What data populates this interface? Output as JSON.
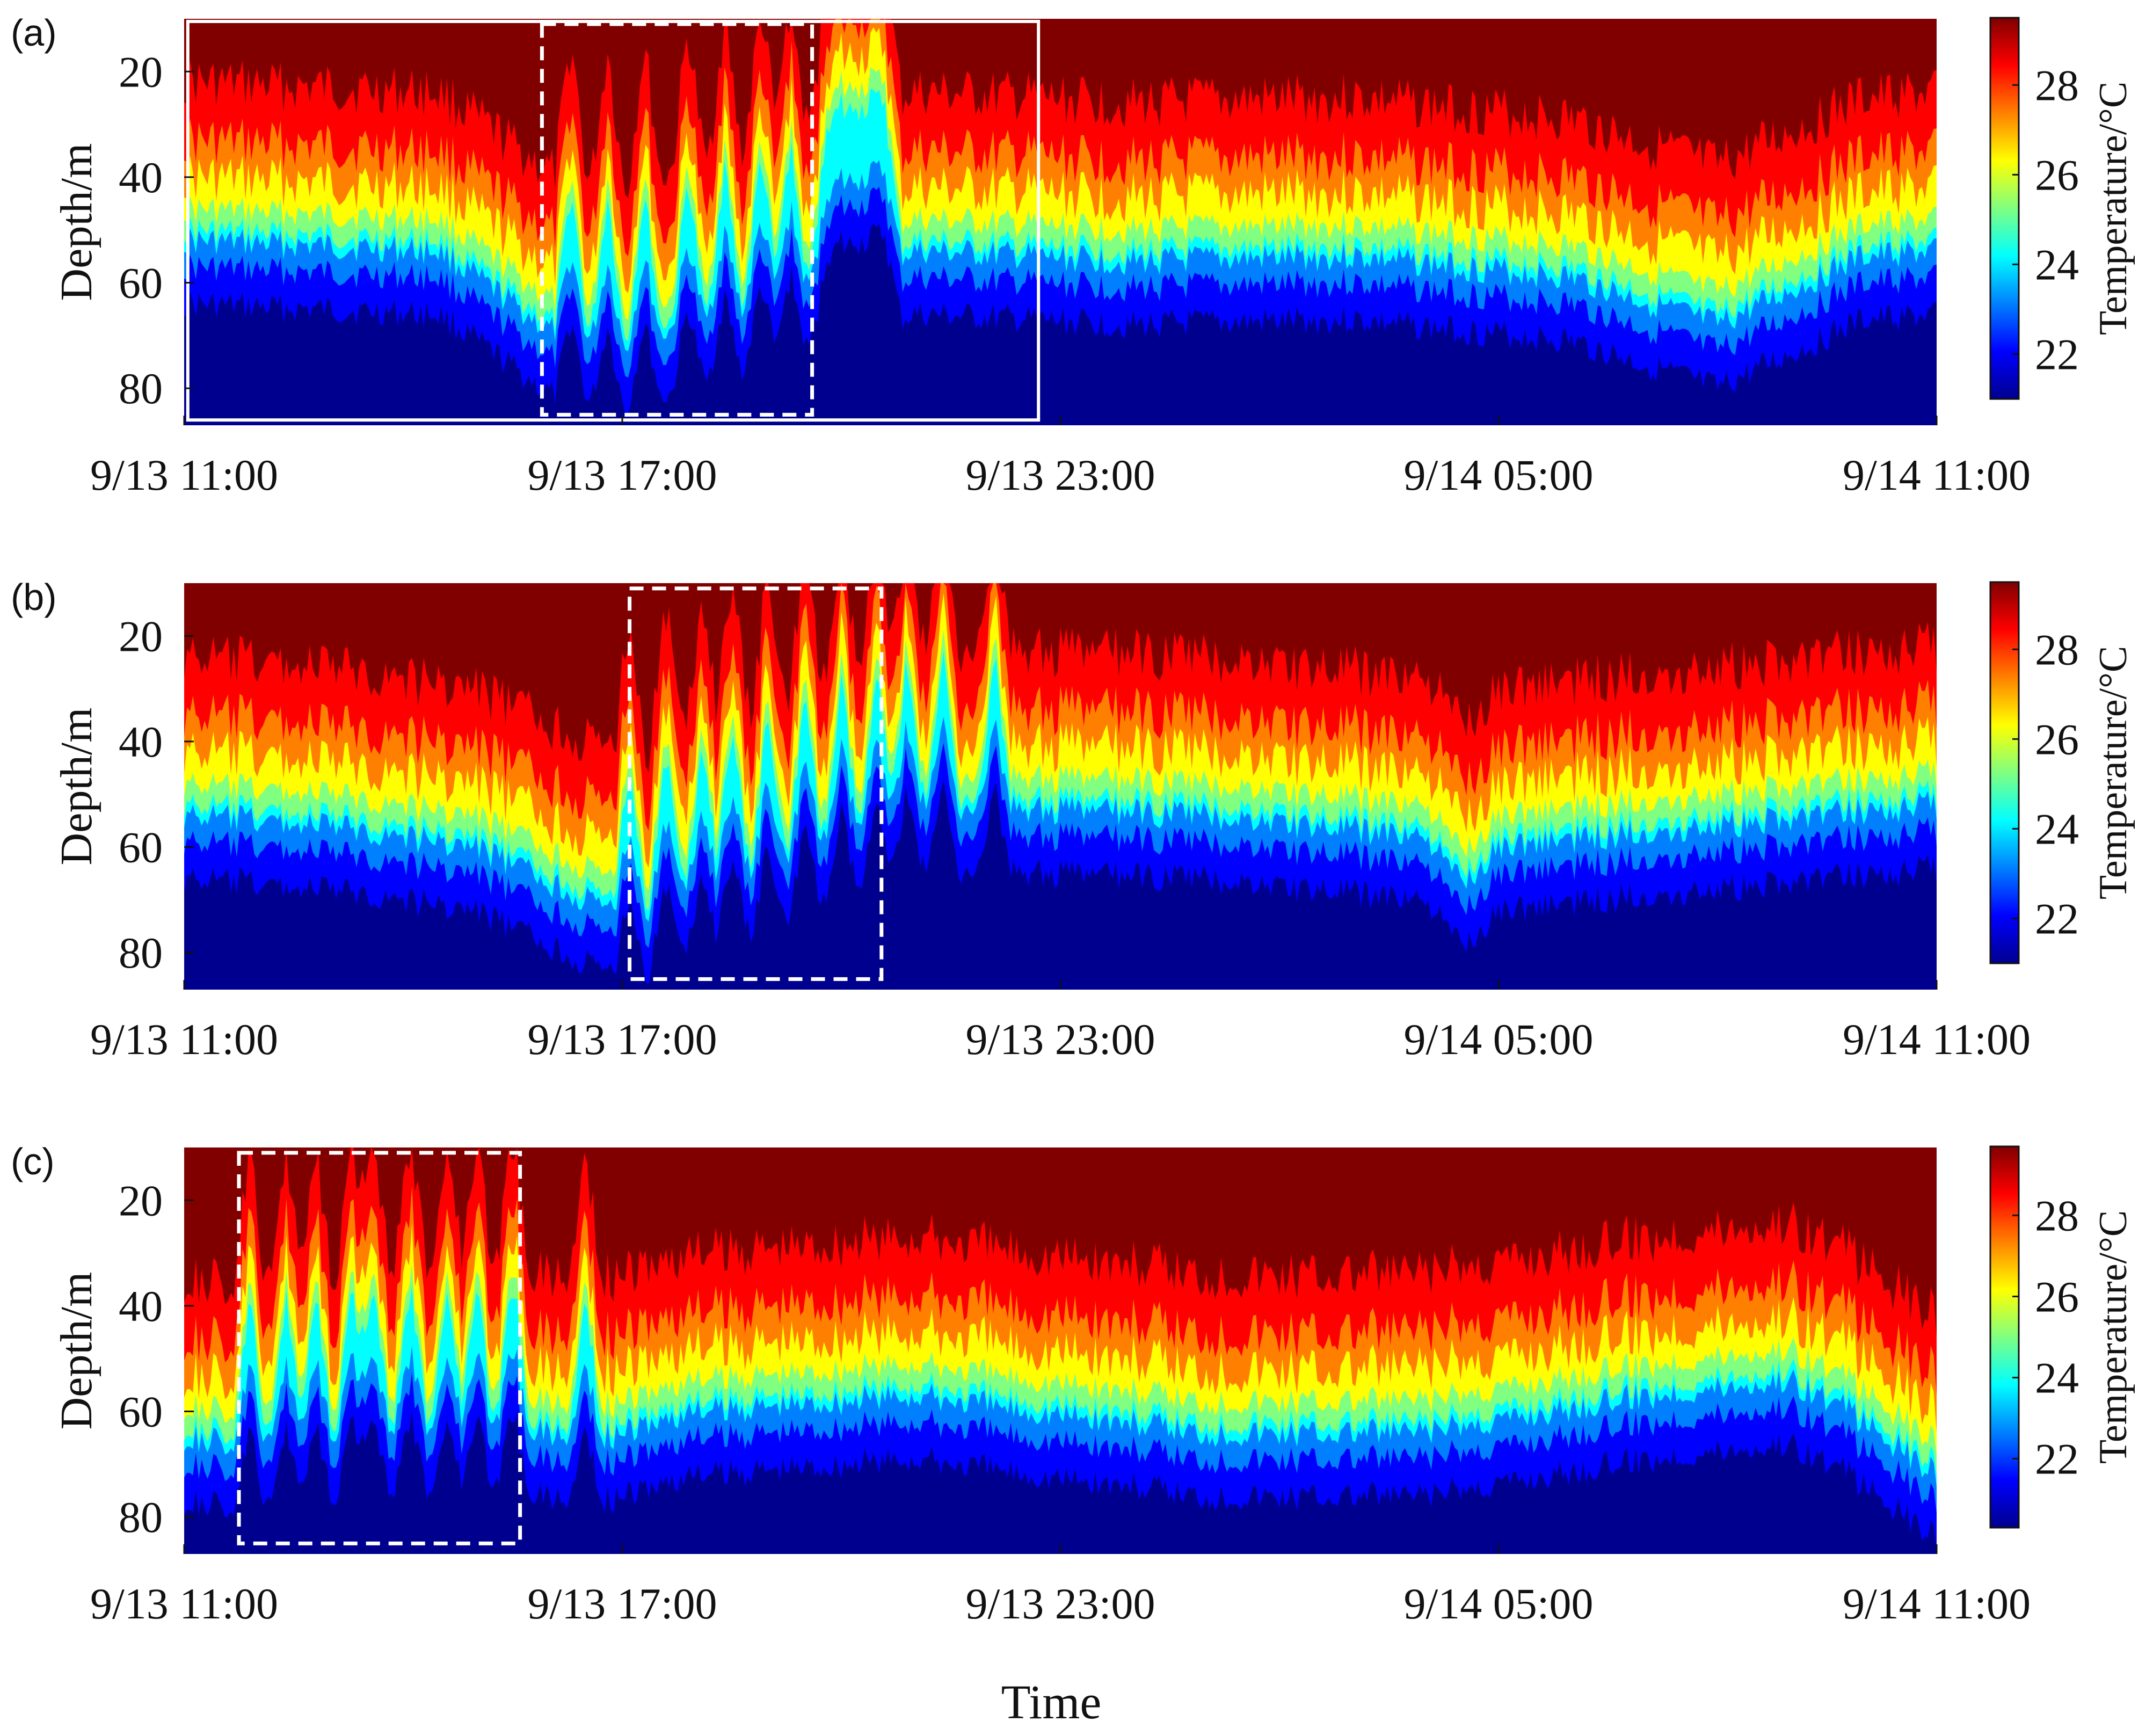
{
  "figure": {
    "x_title": "Time"
  },
  "colors": {
    "jet": [
      "#00008f",
      "#0000ff",
      "#0080ff",
      "#00ffff",
      "#80ff80",
      "#ffff00",
      "#ff8000",
      "#ff0000",
      "#800000"
    ],
    "box_white": "#ffffff"
  },
  "chart_data": [
    {
      "id": "a",
      "type": "heatmap",
      "panel_label": "(a)",
      "ylabel": "Depth/m",
      "colorbar_label": "Temperature/°C",
      "x_ticks": [
        "9/13 11:00",
        "9/13 17:00",
        "9/13 23:00",
        "9/14 05:00",
        "9/14 11:00"
      ],
      "x_range_hours": [
        0,
        24
      ],
      "y_ticks": [
        20,
        40,
        60,
        80
      ],
      "y_range_m": [
        10,
        87
      ],
      "color_range_C": [
        21,
        29.5
      ],
      "colorbar_ticks": [
        22,
        24,
        26,
        28
      ],
      "base_thermocline_depth_m": [
        [
          0,
          50
        ],
        [
          3.5,
          52
        ],
        [
          5,
          67
        ],
        [
          6,
          70
        ],
        [
          10,
          52
        ],
        [
          13,
          54
        ],
        [
          16,
          53
        ],
        [
          19,
          57
        ],
        [
          21,
          66
        ],
        [
          23,
          53
        ],
        [
          24,
          52
        ]
      ],
      "internal_wave_peaks_hours": [
        5.3,
        5.8,
        6.3,
        6.9,
        7.4,
        7.9,
        8.3,
        8.8,
        9.0,
        9.2,
        9.4,
        9.6
      ],
      "solid_box": {
        "from_hours": 0.05,
        "to_hours": 11.7,
        "from_m": 10.5,
        "to_m": 86
      },
      "dashed_box": {
        "from_hours": 4.9,
        "to_hours": 8.6,
        "from_m": 11,
        "to_m": 85
      }
    },
    {
      "id": "b",
      "type": "heatmap",
      "panel_label": "(b)",
      "ylabel": "Depth/m",
      "colorbar_label": "Temperature/°C",
      "x_ticks": [
        "9/13 11:00",
        "9/13 17:00",
        "9/13 23:00",
        "9/14 05:00",
        "9/14 11:00"
      ],
      "x_range_hours": [
        0,
        24
      ],
      "y_ticks": [
        20,
        40,
        60,
        80
      ],
      "y_range_m": [
        10,
        87
      ],
      "color_range_C": [
        21,
        29.5
      ],
      "colorbar_ticks": [
        22,
        24,
        26,
        28
      ],
      "base_thermocline_depth_m": [
        [
          0,
          52
        ],
        [
          2,
          54
        ],
        [
          4,
          58
        ],
        [
          5.8,
          70
        ],
        [
          6.3,
          70
        ],
        [
          10,
          50
        ],
        [
          14,
          52
        ],
        [
          17,
          56
        ],
        [
          17.5,
          65
        ],
        [
          18,
          58
        ],
        [
          20,
          55
        ],
        [
          24,
          50
        ]
      ],
      "internal_wave_peaks_hours": [
        6.1,
        6.6,
        7.1,
        7.5,
        8.0,
        8.5,
        9.0,
        9.5,
        9.9,
        10.4,
        11.1
      ],
      "dashed_box": {
        "from_hours": 6.1,
        "to_hours": 9.55,
        "from_m": 11,
        "to_m": 85
      }
    },
    {
      "id": "c",
      "type": "heatmap",
      "panel_label": "(c)",
      "ylabel": "Depth/m",
      "colorbar_label": "Temperature/°C",
      "x_ticks": [
        "9/13 11:00",
        "9/13 17:00",
        "9/13 23:00",
        "9/14 05:00",
        "9/14 11:00"
      ],
      "x_range_hours": [
        0,
        24
      ],
      "y_ticks": [
        20,
        40,
        60,
        80
      ],
      "y_range_m": [
        10,
        87
      ],
      "color_range_C": [
        20.3,
        29.7
      ],
      "colorbar_ticks": [
        22,
        24,
        26,
        28
      ],
      "base_thermocline_depth_m": [
        [
          0,
          63
        ],
        [
          1,
          65
        ],
        [
          2,
          62
        ],
        [
          3.5,
          62
        ],
        [
          4.5,
          60
        ],
        [
          5.5,
          64
        ],
        [
          7,
          58
        ],
        [
          10,
          55
        ],
        [
          14,
          62
        ],
        [
          17,
          62
        ],
        [
          20,
          55
        ],
        [
          22,
          52
        ],
        [
          22.8,
          58
        ],
        [
          24,
          70
        ]
      ],
      "internal_wave_peaks_hours": [
        0.9,
        1.4,
        1.8,
        2.3,
        2.6,
        3.1,
        3.6,
        4.0,
        4.5,
        5.5
      ],
      "dashed_box": {
        "from_hours": 0.75,
        "to_hours": 4.6,
        "from_m": 11,
        "to_m": 85
      }
    }
  ]
}
